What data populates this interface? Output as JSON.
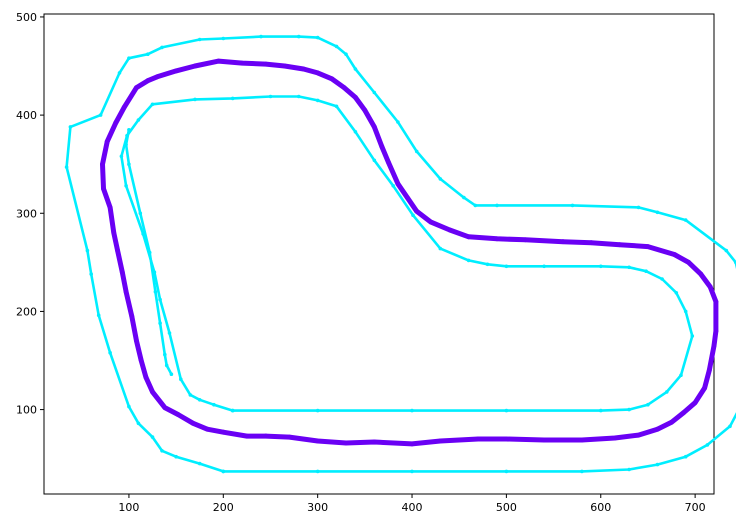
{
  "chart_data": {
    "type": "line",
    "title": "",
    "xlabel": "",
    "ylabel": "",
    "xlim": [
      10,
      720
    ],
    "ylim": [
      14,
      503
    ],
    "xticks": [
      100,
      200,
      300,
      400,
      500,
      600,
      700
    ],
    "yticks": [
      100,
      200,
      300,
      400,
      500
    ],
    "grid": false,
    "legend": "none",
    "colors": {
      "boundary": "#00eeff",
      "path": "#6a00f4"
    },
    "series": [
      {
        "role": "outer-boundary",
        "values": [
          [
            200,
            37
          ],
          [
            300,
            37
          ],
          [
            400,
            37
          ],
          [
            500,
            37
          ],
          [
            580,
            37
          ],
          [
            630,
            39
          ],
          [
            660,
            44
          ],
          [
            690,
            52
          ],
          [
            713,
            64
          ],
          [
            737,
            83
          ],
          [
            754,
            114
          ],
          [
            762,
            180
          ],
          [
            758,
            190
          ],
          [
            743,
            250
          ],
          [
            733,
            262
          ],
          [
            690,
            293
          ],
          [
            660,
            301
          ],
          [
            640,
            306
          ],
          [
            570,
            308
          ],
          [
            490,
            308
          ],
          [
            467,
            308
          ],
          [
            455,
            316
          ],
          [
            430,
            335
          ],
          [
            405,
            363
          ],
          [
            385,
            393
          ],
          [
            360,
            423
          ],
          [
            340,
            447
          ],
          [
            330,
            462
          ],
          [
            320,
            470
          ],
          [
            300,
            479
          ],
          [
            280,
            480
          ],
          [
            240,
            480
          ],
          [
            200,
            478
          ],
          [
            175,
            477
          ],
          [
            135,
            469
          ],
          [
            120,
            462
          ],
          [
            100,
            458
          ],
          [
            90,
            443
          ],
          [
            70,
            400
          ],
          [
            38,
            388
          ],
          [
            34,
            347
          ],
          [
            56,
            262
          ],
          [
            60,
            238
          ],
          [
            68,
            196
          ],
          [
            80,
            158
          ],
          [
            100,
            103
          ],
          [
            110,
            86
          ],
          [
            125,
            72
          ],
          [
            135,
            58
          ],
          [
            150,
            52
          ],
          [
            175,
            45
          ],
          [
            200,
            37
          ]
        ]
      },
      {
        "role": "inner-boundary",
        "values": [
          [
            210,
            99
          ],
          [
            300,
            99
          ],
          [
            400,
            99
          ],
          [
            500,
            99
          ],
          [
            600,
            99
          ],
          [
            630,
            100
          ],
          [
            650,
            105
          ],
          [
            670,
            118
          ],
          [
            685,
            135
          ],
          [
            697,
            175
          ],
          [
            690,
            200
          ],
          [
            680,
            219
          ],
          [
            665,
            233
          ],
          [
            648,
            241
          ],
          [
            630,
            245
          ],
          [
            600,
            246
          ],
          [
            540,
            246
          ],
          [
            500,
            246
          ],
          [
            480,
            248
          ],
          [
            460,
            252
          ],
          [
            430,
            264
          ],
          [
            401,
            298
          ],
          [
            380,
            328
          ],
          [
            360,
            354
          ],
          [
            340,
            383
          ],
          [
            320,
            409
          ],
          [
            300,
            415
          ],
          [
            280,
            419
          ],
          [
            250,
            419
          ],
          [
            210,
            417
          ],
          [
            170,
            416
          ],
          [
            125,
            411
          ],
          [
            110,
            395
          ],
          [
            98,
            379
          ],
          [
            92,
            358
          ],
          [
            97,
            328
          ],
          [
            115,
            279
          ],
          [
            127,
            240
          ],
          [
            133,
            212
          ],
          [
            143,
            178
          ],
          [
            155,
            131
          ],
          [
            165,
            115
          ],
          [
            175,
            110
          ],
          [
            190,
            105
          ],
          [
            210,
            99
          ]
        ]
      },
      {
        "role": "left-stray-boundary-segment",
        "values": [
          [
            100,
            385
          ],
          [
            97,
            370
          ],
          [
            100,
            350
          ],
          [
            112,
            300
          ],
          [
            122,
            260
          ],
          [
            128,
            220
          ],
          [
            133,
            188
          ],
          [
            138,
            156
          ],
          [
            140,
            145
          ],
          [
            145,
            136
          ]
        ]
      },
      {
        "role": "driven-path",
        "values": [
          [
            245,
            73
          ],
          [
            270,
            72
          ],
          [
            300,
            68
          ],
          [
            330,
            66
          ],
          [
            360,
            67
          ],
          [
            400,
            65
          ],
          [
            430,
            68
          ],
          [
            470,
            70
          ],
          [
            500,
            70
          ],
          [
            540,
            69
          ],
          [
            580,
            69
          ],
          [
            615,
            71
          ],
          [
            640,
            74
          ],
          [
            660,
            80
          ],
          [
            675,
            87
          ],
          [
            688,
            97
          ],
          [
            700,
            107
          ],
          [
            710,
            122
          ],
          [
            715,
            140
          ],
          [
            720,
            165
          ],
          [
            722,
            180
          ],
          [
            722,
            210
          ],
          [
            716,
            225
          ],
          [
            706,
            238
          ],
          [
            693,
            250
          ],
          [
            678,
            258
          ],
          [
            650,
            266
          ],
          [
            620,
            268
          ],
          [
            590,
            270
          ],
          [
            560,
            271
          ],
          [
            520,
            273
          ],
          [
            490,
            274
          ],
          [
            460,
            276
          ],
          [
            440,
            283
          ],
          [
            420,
            291
          ],
          [
            405,
            302
          ],
          [
            395,
            316
          ],
          [
            385,
            330
          ],
          [
            375,
            352
          ],
          [
            368,
            368
          ],
          [
            360,
            388
          ],
          [
            350,
            405
          ],
          [
            340,
            418
          ],
          [
            328,
            428
          ],
          [
            315,
            437
          ],
          [
            300,
            443
          ],
          [
            285,
            447
          ],
          [
            265,
            450
          ],
          [
            245,
            452
          ],
          [
            220,
            453
          ],
          [
            195,
            455
          ],
          [
            170,
            450
          ],
          [
            150,
            445
          ],
          [
            130,
            439
          ],
          [
            120,
            435
          ],
          [
            108,
            428
          ],
          [
            95,
            408
          ],
          [
            86,
            392
          ],
          [
            77,
            373
          ],
          [
            72,
            350
          ],
          [
            73,
            325
          ],
          [
            80,
            306
          ],
          [
            84,
            280
          ],
          [
            88,
            262
          ],
          [
            93,
            240
          ],
          [
            97,
            220
          ],
          [
            103,
            195
          ],
          [
            108,
            170
          ],
          [
            113,
            150
          ],
          [
            118,
            133
          ],
          [
            125,
            118
          ],
          [
            138,
            102
          ],
          [
            152,
            95
          ],
          [
            168,
            86
          ],
          [
            183,
            80
          ],
          [
            200,
            77
          ],
          [
            225,
            73
          ],
          [
            245,
            73
          ]
        ]
      }
    ]
  }
}
